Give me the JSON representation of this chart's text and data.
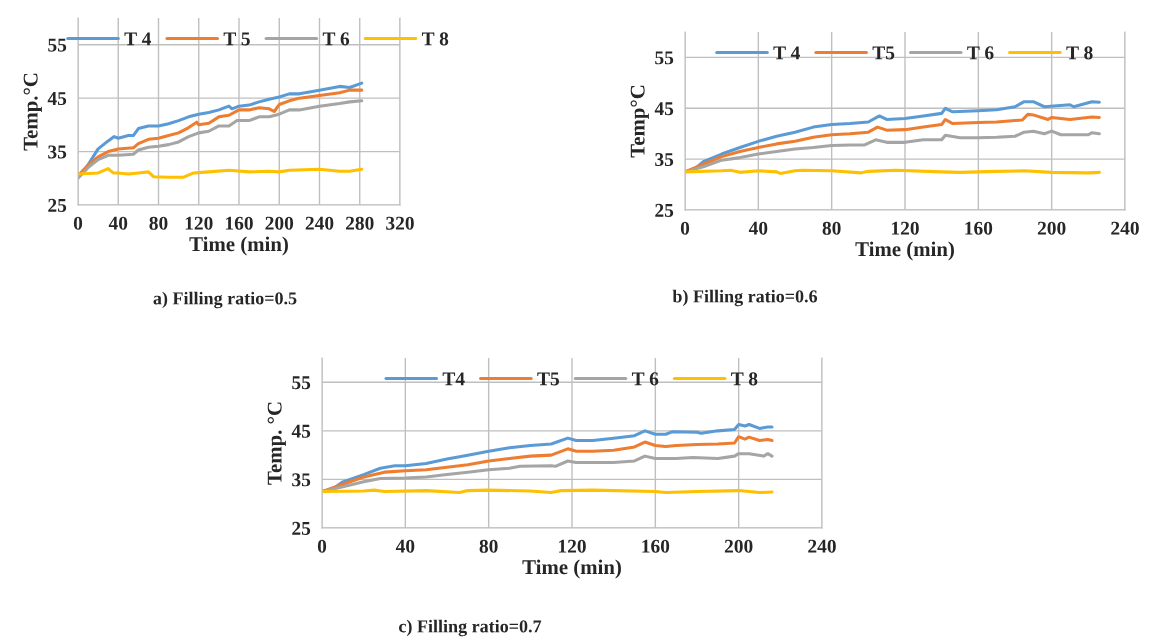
{
  "chart_data": [
    {
      "type": "line",
      "xlabel": "Time (min)",
      "ylabel": "Temp.°C",
      "xlim": [
        0,
        320
      ],
      "xticks": [
        0,
        40,
        80,
        120,
        160,
        200,
        240,
        280,
        320
      ],
      "ylim": [
        25,
        60
      ],
      "yticks": [
        25,
        35,
        45,
        55
      ],
      "grid": true,
      "legend": "top",
      "annotations": [
        "a) Filling ratio=0.5"
      ],
      "series": [
        {
          "name": "T 4",
          "color": "#5b9bd5",
          "x": [
            0,
            5,
            10,
            20,
            30,
            36,
            40,
            50,
            55,
            60,
            70,
            80,
            90,
            100,
            110,
            120,
            130,
            140,
            150,
            153,
            160,
            170,
            180,
            190,
            200,
            210,
            220,
            240,
            260,
            270,
            282
          ],
          "values": [
            30.5,
            31,
            32.5,
            35.5,
            37,
            37.8,
            37.5,
            38,
            38,
            39.3,
            39.8,
            39.8,
            40.2,
            40.8,
            41.5,
            42,
            42.3,
            42.8,
            43.5,
            43,
            43.5,
            43.7,
            44.3,
            44.8,
            45.2,
            45.8,
            45.8,
            46.5,
            47.2,
            47,
            47.8
          ]
        },
        {
          "name": "T 5",
          "color": "#ed7d31",
          "x": [
            0,
            10,
            20,
            30,
            40,
            55,
            60,
            70,
            80,
            90,
            100,
            110,
            118,
            120,
            130,
            140,
            150,
            160,
            170,
            180,
            190,
            195,
            200,
            210,
            220,
            240,
            260,
            270,
            282
          ],
          "values": [
            30.5,
            32.5,
            34,
            35,
            35.5,
            35.7,
            36.5,
            37.3,
            37.5,
            38,
            38.5,
            39.5,
            40.5,
            40,
            40.3,
            41.5,
            41.8,
            42.8,
            42.8,
            43.2,
            43,
            42.5,
            43.8,
            44.5,
            45,
            45.5,
            46,
            46.5,
            46.5
          ]
        },
        {
          "name": "T 6",
          "color": "#a5a5a5",
          "x": [
            0,
            10,
            20,
            30,
            40,
            55,
            60,
            70,
            80,
            90,
            100,
            110,
            120,
            130,
            140,
            150,
            158,
            170,
            180,
            190,
            200,
            210,
            220,
            240,
            260,
            270,
            282
          ],
          "values": [
            30,
            32,
            33.5,
            34.3,
            34.3,
            34.5,
            35.3,
            35.8,
            36,
            36.3,
            36.8,
            37.8,
            38.5,
            38.8,
            39.8,
            39.8,
            40.8,
            40.8,
            41.5,
            41.5,
            42,
            42.8,
            42.8,
            43.5,
            44,
            44.3,
            44.5
          ]
        },
        {
          "name": "T 8",
          "color": "#ffc000",
          "x": [
            0,
            20,
            30,
            35,
            40,
            50,
            60,
            70,
            75,
            90,
            105,
            115,
            130,
            150,
            170,
            190,
            200,
            210,
            240,
            260,
            270,
            282
          ],
          "values": [
            30.8,
            31,
            31.8,
            31,
            31,
            30.8,
            31,
            31.2,
            30.3,
            30.2,
            30.2,
            31,
            31.2,
            31.5,
            31.2,
            31.3,
            31.2,
            31.5,
            31.7,
            31.3,
            31.3,
            31.7
          ]
        }
      ]
    },
    {
      "type": "line",
      "xlabel": "Time (min)",
      "ylabel": "Temp°C",
      "xlim": [
        0,
        240
      ],
      "xticks": [
        0,
        40,
        80,
        120,
        160,
        200,
        240
      ],
      "ylim": [
        25,
        60
      ],
      "yticks": [
        25,
        35,
        45,
        55
      ],
      "grid": true,
      "legend": "top",
      "annotations": [
        "b) Filling ratio=0.6"
      ],
      "series": [
        {
          "name": "T 4",
          "color": "#5b9bd5",
          "x": [
            0,
            5,
            10,
            20,
            30,
            40,
            50,
            60,
            70,
            80,
            90,
            100,
            106,
            110,
            120,
            130,
            140,
            142,
            146,
            160,
            170,
            180,
            185,
            190,
            196,
            210,
            212,
            222,
            226
          ],
          "values": [
            32.5,
            33,
            34.5,
            36,
            37.3,
            38.5,
            39.5,
            40.3,
            41.3,
            41.8,
            42,
            42.3,
            43.5,
            42.8,
            43,
            43.5,
            44,
            45,
            44.3,
            44.5,
            44.7,
            45.3,
            46.3,
            46.3,
            45.3,
            45.7,
            45.3,
            46.3,
            46.2
          ]
        },
        {
          "name": "T5",
          "color": "#ed7d31",
          "x": [
            0,
            10,
            20,
            30,
            40,
            50,
            60,
            70,
            80,
            90,
            100,
            105,
            110,
            120,
            130,
            140,
            142,
            146,
            160,
            170,
            184,
            187,
            190,
            198,
            200,
            210,
            222,
            226
          ],
          "values": [
            32.5,
            34,
            35.5,
            36.5,
            37.3,
            38,
            38.5,
            39.3,
            39.8,
            40,
            40.3,
            41.3,
            40.7,
            40.8,
            41.3,
            41.8,
            42.8,
            42,
            42.2,
            42.3,
            42.7,
            43.8,
            43.7,
            42.8,
            43.2,
            42.8,
            43.3,
            43.2
          ]
        },
        {
          "name": "T 6",
          "color": "#a5a5a5",
          "x": [
            0,
            10,
            20,
            30,
            40,
            50,
            60,
            70,
            80,
            90,
            98,
            104,
            110,
            120,
            130,
            140,
            142,
            150,
            160,
            170,
            180,
            185,
            190,
            196,
            200,
            205,
            220,
            222,
            226
          ],
          "values": [
            32.5,
            33.5,
            34.8,
            35.3,
            36,
            36.5,
            37,
            37.3,
            37.7,
            37.8,
            37.8,
            38.8,
            38.3,
            38.3,
            38.8,
            38.8,
            39.7,
            39.2,
            39.2,
            39.3,
            39.5,
            40.3,
            40.5,
            40,
            40.5,
            39.8,
            39.8,
            40.2,
            40
          ]
        },
        {
          "name": "T 8",
          "color": "#ffc000",
          "x": [
            0,
            20,
            25,
            30,
            40,
            50,
            52,
            60,
            64,
            80,
            96,
            100,
            115,
            140,
            150,
            170,
            185,
            200,
            220,
            226
          ],
          "values": [
            32.5,
            32.7,
            32.8,
            32.4,
            32.7,
            32.5,
            32.2,
            32.7,
            32.8,
            32.7,
            32.3,
            32.6,
            32.8,
            32.5,
            32.4,
            32.6,
            32.7,
            32.4,
            32.3,
            32.4
          ]
        }
      ]
    },
    {
      "type": "line",
      "xlabel": "Time (min)",
      "ylabel": "Temp. °C",
      "xlim": [
        0,
        240
      ],
      "xticks": [
        0,
        40,
        80,
        120,
        160,
        200,
        240
      ],
      "ylim": [
        25,
        60
      ],
      "yticks": [
        25,
        35,
        45,
        55
      ],
      "grid": true,
      "legend": "top",
      "annotations": [
        "c) Filling ratio=0.7"
      ],
      "series": [
        {
          "name": "T4",
          "color": "#5b9bd5",
          "x": [
            0,
            5,
            10,
            20,
            28,
            35,
            40,
            50,
            60,
            70,
            80,
            90,
            100,
            110,
            118,
            122,
            130,
            140,
            150,
            155,
            160,
            165,
            168,
            180,
            182,
            190,
            198,
            200,
            203,
            205,
            210,
            214,
            216
          ],
          "values": [
            32.5,
            33,
            34.5,
            36,
            37.3,
            37.8,
            37.8,
            38.3,
            39.2,
            40,
            40.8,
            41.5,
            42,
            42.3,
            43.5,
            43,
            43,
            43.5,
            44,
            45,
            44.3,
            44.3,
            44.8,
            44.7,
            44.5,
            45,
            45.3,
            46.3,
            46,
            46.3,
            45.5,
            45.8,
            45.8
          ]
        },
        {
          "name": "T5",
          "color": "#ed7d31",
          "x": [
            0,
            10,
            20,
            30,
            40,
            50,
            60,
            70,
            80,
            90,
            100,
            110,
            118,
            122,
            130,
            140,
            150,
            155,
            160,
            165,
            170,
            180,
            190,
            198,
            200,
            203,
            205,
            210,
            214,
            216
          ],
          "values": [
            32.5,
            34,
            35.5,
            36.5,
            36.8,
            37,
            37.5,
            38,
            38.8,
            39.3,
            39.8,
            40,
            41.3,
            40.8,
            40.8,
            41,
            41.7,
            42.7,
            42,
            41.8,
            42,
            42.2,
            42.3,
            42.5,
            43.8,
            43.3,
            43.7,
            43,
            43.2,
            43
          ]
        },
        {
          "name": "T 6",
          "color": "#a5a5a5",
          "x": [
            0,
            10,
            20,
            28,
            40,
            50,
            60,
            70,
            80,
            90,
            95,
            110,
            112,
            118,
            122,
            140,
            150,
            155,
            160,
            170,
            178,
            190,
            198,
            200,
            205,
            212,
            214,
            216
          ],
          "values": [
            32.5,
            33.5,
            34.5,
            35.2,
            35.3,
            35.5,
            36,
            36.5,
            37,
            37.3,
            37.7,
            37.8,
            37.7,
            38.8,
            38.5,
            38.5,
            38.8,
            39.8,
            39.3,
            39.3,
            39.5,
            39.3,
            39.8,
            40.3,
            40.3,
            39.8,
            40.3,
            39.8
          ]
        },
        {
          "name": "T 8",
          "color": "#ffc000",
          "x": [
            0,
            20,
            25,
            30,
            50,
            66,
            70,
            80,
            100,
            110,
            115,
            130,
            160,
            165,
            180,
            200,
            210,
            216
          ],
          "values": [
            32.5,
            32.6,
            32.8,
            32.5,
            32.7,
            32.3,
            32.7,
            32.8,
            32.6,
            32.3,
            32.7,
            32.8,
            32.5,
            32.3,
            32.5,
            32.7,
            32.3,
            32.4
          ]
        }
      ]
    }
  ]
}
